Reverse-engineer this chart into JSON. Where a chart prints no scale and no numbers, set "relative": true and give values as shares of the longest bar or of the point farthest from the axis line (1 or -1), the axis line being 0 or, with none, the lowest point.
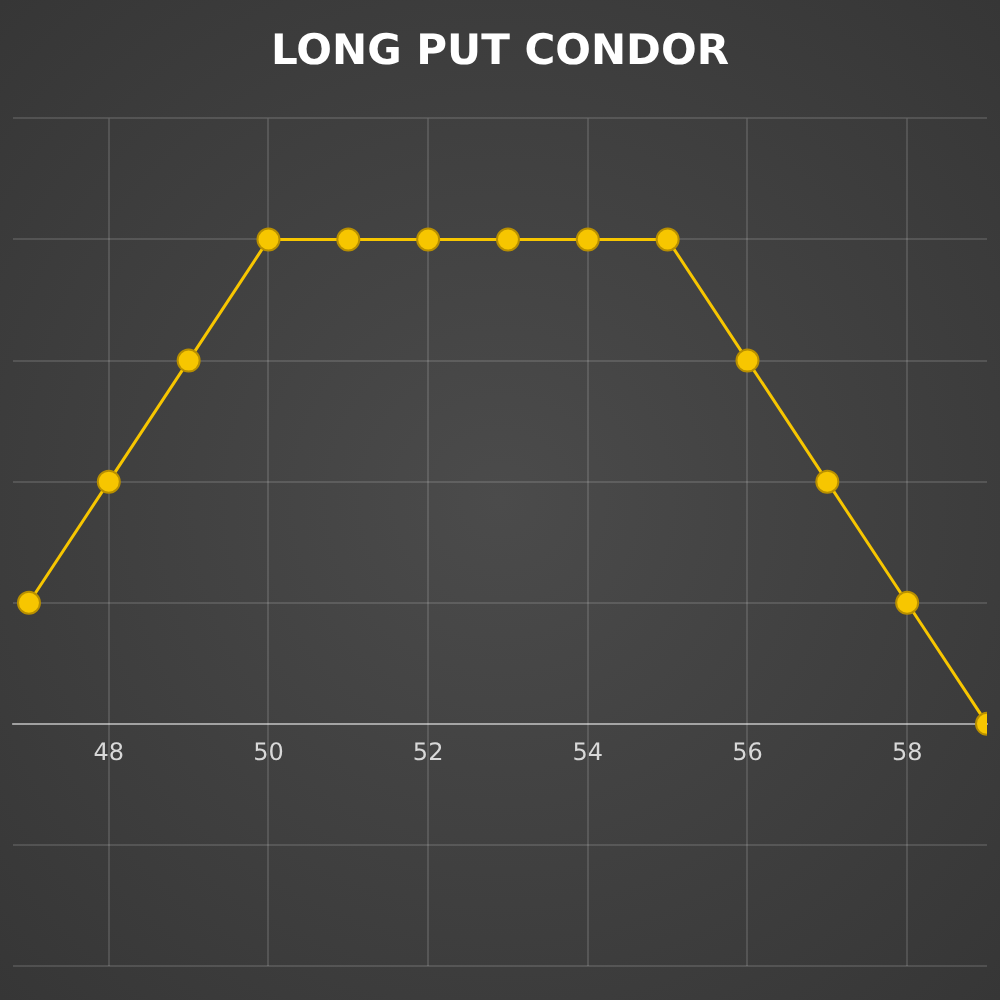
{
  "chart_data": {
    "type": "line",
    "title": "LONG PUT CONDOR",
    "relative": true,
    "x": [
      47,
      48,
      49,
      50,
      51,
      52,
      53,
      54,
      55,
      56,
      57,
      58,
      59
    ],
    "series": [
      {
        "color": "#f7c600",
        "values": [
          0.25,
          0.5,
          0.75,
          1,
          1,
          1,
          1,
          1,
          1,
          0.75,
          0.5,
          0.25,
          0
        ]
      }
    ],
    "xlim": [
      46.8,
      59
    ],
    "xticks": [
      48,
      50,
      52,
      54,
      56,
      58
    ],
    "grid": true,
    "marker": "circle",
    "line_style": "solid"
  }
}
